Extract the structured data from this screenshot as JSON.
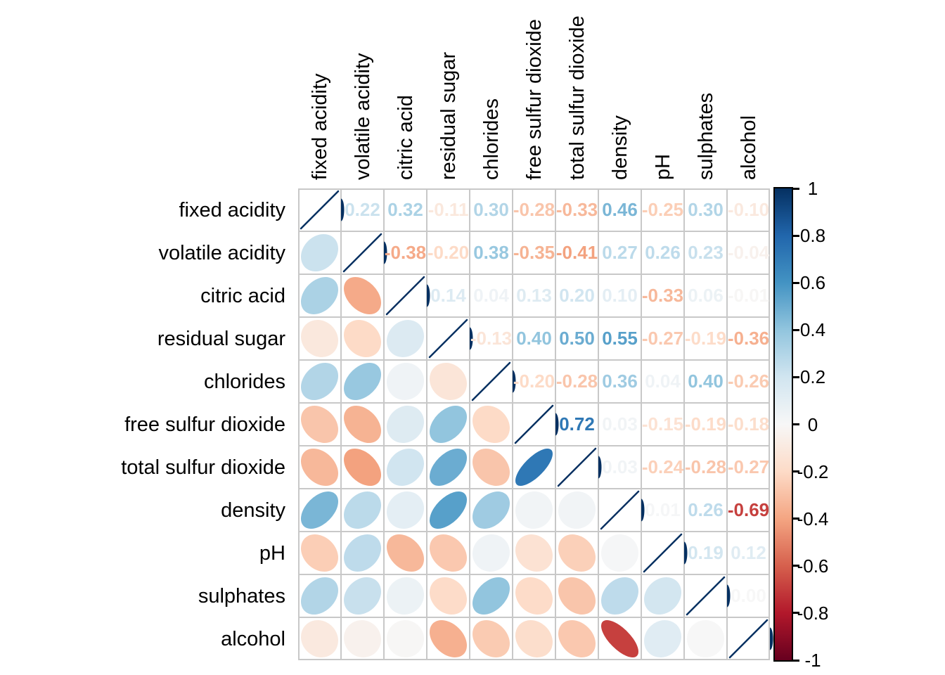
{
  "figure": {
    "kind": "correlation matrix plot (mixed: ellipses lower / numbers upper / unit-line diagonal)",
    "background": "#ffffff",
    "grid_color": "#c8c8c8",
    "label_color": "#000000"
  },
  "chart_data": {
    "type": "heatmap",
    "subtype": "correlation-matrix",
    "upper_triangle": "numbers",
    "lower_triangle": "ellipses",
    "diagonal": "line (r = 1)",
    "value_range": [
      -1,
      1
    ],
    "variables": [
      "fixed acidity",
      "volatile acidity",
      "citric acid",
      "residual sugar",
      "chlorides",
      "free sulfur dioxide",
      "total sulfur dioxide",
      "density",
      "pH",
      "sulphates",
      "alcohol"
    ],
    "matrix": [
      [
        1,
        0.22,
        0.32,
        -0.11,
        0.3,
        -0.28,
        -0.33,
        0.46,
        -0.25,
        0.3,
        -0.1
      ],
      [
        0.22,
        1,
        -0.38,
        -0.2,
        0.38,
        -0.35,
        -0.41,
        0.27,
        0.26,
        0.23,
        -0.04
      ],
      [
        0.32,
        -0.38,
        1,
        0.14,
        0.04,
        0.13,
        0.2,
        0.1,
        -0.33,
        0.06,
        -0.01
      ],
      [
        -0.11,
        -0.2,
        0.14,
        1,
        -0.13,
        0.4,
        0.5,
        0.55,
        -0.27,
        -0.19,
        -0.36
      ],
      [
        0.3,
        0.38,
        0.04,
        -0.13,
        1,
        -0.2,
        -0.28,
        0.36,
        0.04,
        0.4,
        -0.26
      ],
      [
        -0.28,
        -0.35,
        0.13,
        0.4,
        -0.2,
        1,
        0.72,
        0.03,
        -0.15,
        -0.19,
        -0.18
      ],
      [
        -0.33,
        -0.41,
        0.2,
        0.5,
        -0.28,
        0.72,
        1,
        0.03,
        -0.24,
        -0.28,
        -0.27
      ],
      [
        0.46,
        0.27,
        0.1,
        0.55,
        0.36,
        0.03,
        0.03,
        1,
        0.01,
        0.26,
        -0.69
      ],
      [
        -0.25,
        0.26,
        -0.33,
        -0.27,
        0.04,
        -0.15,
        -0.24,
        0.01,
        1,
        0.19,
        0.12
      ],
      [
        0.3,
        0.23,
        0.06,
        -0.19,
        0.4,
        -0.19,
        -0.28,
        0.26,
        0.19,
        1,
        0.0
      ],
      [
        -0.1,
        -0.04,
        -0.01,
        -0.36,
        -0.26,
        -0.18,
        -0.27,
        -0.69,
        0.12,
        0.0,
        1
      ]
    ],
    "palette": [
      "#67001F",
      "#B2182B",
      "#D6604D",
      "#F4A582",
      "#FDDBC7",
      "#F7F7F7",
      "#D1E5F0",
      "#92C5DE",
      "#4393C3",
      "#2166AC",
      "#053061"
    ],
    "colorbar": {
      "position": "right",
      "min": -1,
      "max": 1,
      "ticks": [
        {
          "value": 1,
          "label": "1"
        },
        {
          "value": 0.8,
          "label": "0.8"
        },
        {
          "value": 0.6,
          "label": "0.6"
        },
        {
          "value": 0.4,
          "label": "0.4"
        },
        {
          "value": 0.2,
          "label": "0.2"
        },
        {
          "value": 0,
          "label": "0"
        },
        {
          "value": -0.2,
          "label": "-0.2"
        },
        {
          "value": -0.4,
          "label": "-0.4"
        },
        {
          "value": -0.6,
          "label": "-0.6"
        },
        {
          "value": -0.8,
          "label": "-0.8"
        },
        {
          "value": -1,
          "label": "-1"
        }
      ]
    }
  }
}
